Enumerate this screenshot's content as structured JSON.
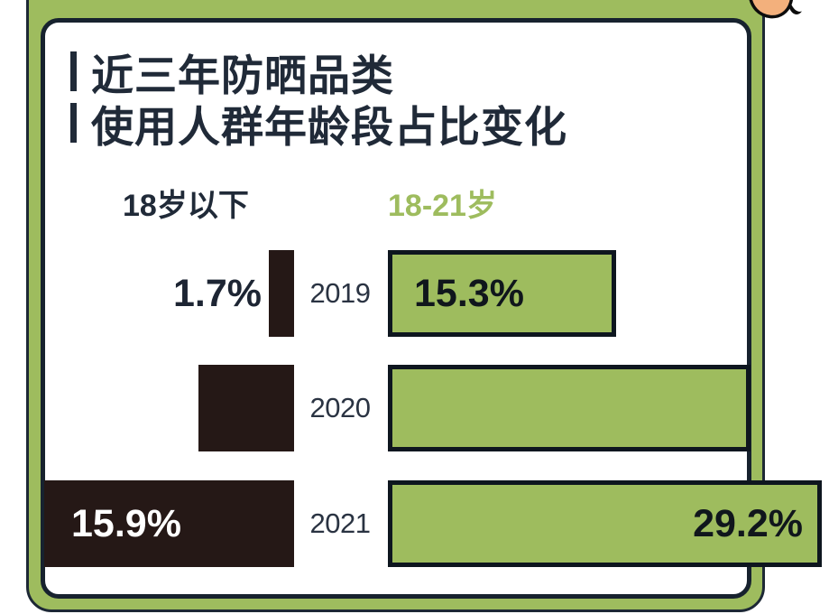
{
  "card": {
    "title_lines": [
      "近三年防晒品类",
      "使用人群年龄段占比变化"
    ]
  },
  "legend": {
    "left": "18岁以下",
    "right": "18-21岁"
  },
  "chart_data": {
    "type": "bar",
    "orientation": "horizontal-diverging",
    "title": "近三年防晒品类使用人群年龄段占比变化",
    "categories": [
      "2019",
      "2020",
      "2021"
    ],
    "series": [
      {
        "name": "18岁以下",
        "color": "#251816",
        "values": [
          1.7,
          null,
          15.9
        ],
        "labels": [
          "1.7%",
          "",
          "15.9%"
        ],
        "side": "left"
      },
      {
        "name": "18-21岁",
        "color": "#9ebc5e",
        "values": [
          15.3,
          null,
          29.2
        ],
        "labels": [
          "15.3%",
          "",
          "29.2%"
        ],
        "side": "right"
      }
    ],
    "rows": [
      {
        "year": "2019",
        "left_label": "1.7%",
        "left_width": 28,
        "right_label": "15.3%",
        "right_width": 253
      },
      {
        "year": "2020",
        "left_label": "",
        "left_width": 106,
        "right_label": "",
        "right_width": 402
      },
      {
        "year": "2021",
        "left_label": "15.9%",
        "left_width": 277,
        "right_label": "29.2%",
        "right_width": 481
      }
    ],
    "legend_position": "top",
    "grid": false
  },
  "colors": {
    "green": "#9ebc5e",
    "dark_bar": "#251816",
    "navy_text": "#202a38",
    "orange_accent": "#f3b07c",
    "card_bg": "#ffffff"
  }
}
